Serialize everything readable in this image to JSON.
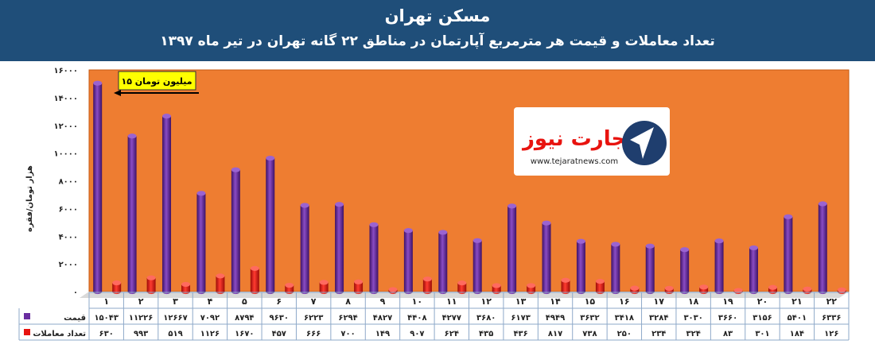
{
  "header": {
    "title": "مسکن تهران",
    "subtitle": "تعداد معاملات و قیمت هر مترمربع آپارتمان در مناطق ۲۲ گانه تهران در تیر ماه ۱۳۹۷"
  },
  "annotation": "۱۵ میلیون تومان",
  "logo": {
    "name": "تجارت نیوز",
    "url": "www.tejaratnews.com"
  },
  "colors": {
    "header_bg": "#1f4e79",
    "plot_bg": "#ee7d31",
    "price_series": "#6a2da0",
    "transactions_series": "#e8130f",
    "annotation_bg": "#ffff00"
  },
  "chart_data": {
    "type": "bar",
    "ylabel": "هزار تومان/فقره",
    "ylim": [
      0,
      16000
    ],
    "yticks": [
      "۰",
      "۲۰۰۰",
      "۴۰۰۰",
      "۶۰۰۰",
      "۸۰۰۰",
      "۱۰۰۰۰",
      "۱۲۰۰۰",
      "۱۴۰۰۰",
      "۱۶۰۰۰"
    ],
    "grid": false,
    "legend": "table-left",
    "categories": [
      "۱",
      "۲",
      "۳",
      "۴",
      "۵",
      "۶",
      "۷",
      "۸",
      "۹",
      "۱۰",
      "۱۱",
      "۱۲",
      "۱۳",
      "۱۴",
      "۱۵",
      "۱۶",
      "۱۷",
      "۱۸",
      "۱۹",
      "۲۰",
      "۲۱",
      "۲۲"
    ],
    "series": [
      {
        "name": "قیمت",
        "values": [
          15043,
          11226,
          12667,
          7092,
          8794,
          9630,
          6223,
          6294,
          4827,
          4408,
          4277,
          3680,
          6173,
          4949,
          3632,
          3418,
          3284,
          3030,
          3660,
          3156,
          5401,
          6336
        ],
        "labels": [
          "۱۵۰۴۳",
          "۱۱۲۲۶",
          "۱۲۶۶۷",
          "۷۰۹۲",
          "۸۷۹۴",
          "۹۶۳۰",
          "۶۲۲۳",
          "۶۲۹۴",
          "۴۸۲۷",
          "۴۴۰۸",
          "۴۲۷۷",
          "۳۶۸۰",
          "۶۱۷۳",
          "۴۹۴۹",
          "۳۶۳۲",
          "۳۴۱۸",
          "۳۲۸۴",
          "۳۰۳۰",
          "۳۶۶۰",
          "۳۱۵۶",
          "۵۴۰۱",
          "۶۳۳۶"
        ]
      },
      {
        "name": "تعداد معاملات",
        "values": [
          630,
          993,
          519,
          1126,
          1670,
          457,
          666,
          700,
          149,
          907,
          624,
          435,
          436,
          817,
          738,
          250,
          234,
          324,
          83,
          301,
          184,
          126
        ],
        "labels": [
          "۶۳۰",
          "۹۹۳",
          "۵۱۹",
          "۱۱۲۶",
          "۱۶۷۰",
          "۴۵۷",
          "۶۶۶",
          "۷۰۰",
          "۱۴۹",
          "۹۰۷",
          "۶۲۴",
          "۴۳۵",
          "۴۳۶",
          "۸۱۷",
          "۷۳۸",
          "۲۵۰",
          "۲۳۴",
          "۳۲۴",
          "۸۳",
          "۳۰۱",
          "۱۸۴",
          "۱۲۶"
        ]
      }
    ]
  }
}
